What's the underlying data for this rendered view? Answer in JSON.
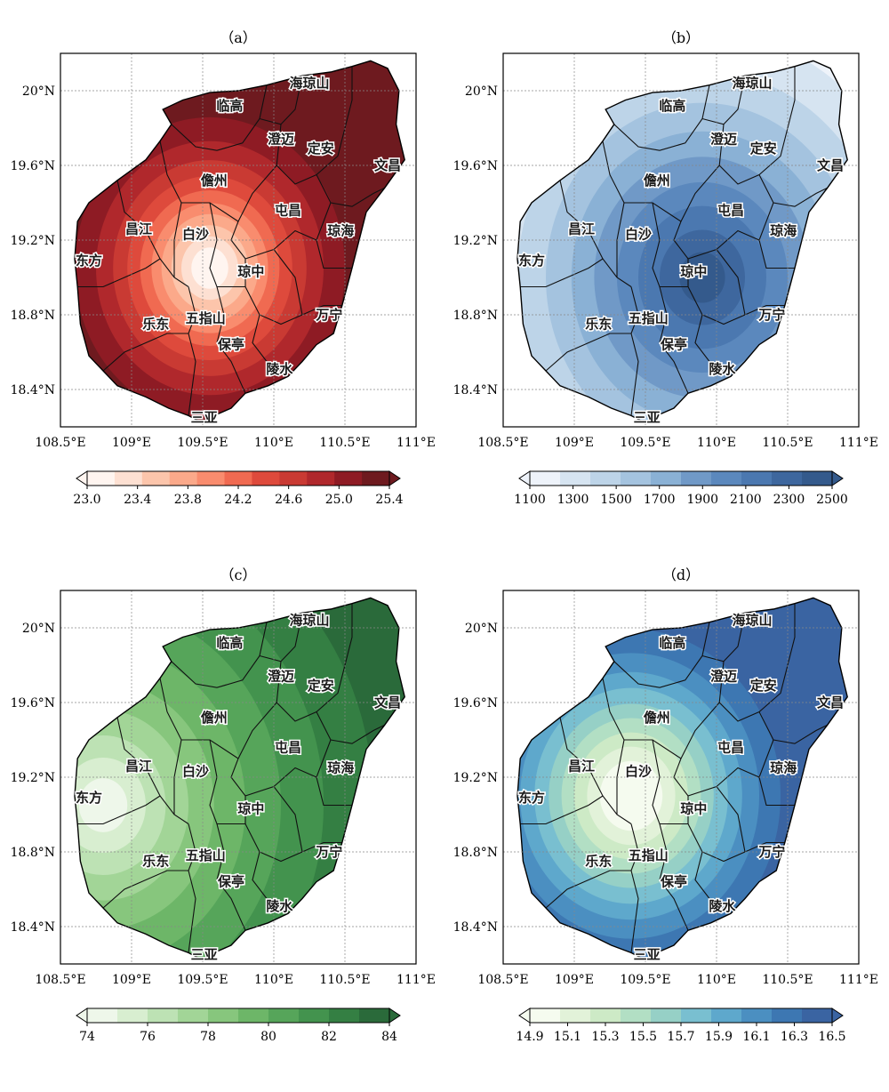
{
  "figure": {
    "panels": [
      {
        "title": "（a）",
        "cmap": [
          "#fff5f0",
          "#fde0d2",
          "#fcc5ab",
          "#fba98a",
          "#f98c6e",
          "#f06a51",
          "#de4a3c",
          "#c93a33",
          "#b0282c",
          "#8e1b24",
          "#6e1a1f"
        ],
        "colorbar_ticks": [
          "23.0",
          "23.4",
          "23.8",
          "24.2",
          "24.6",
          "25.0",
          "25.4"
        ],
        "pattern": "warm-coast"
      },
      {
        "title": "（b）",
        "cmap": [
          "#eef3fa",
          "#d6e4f1",
          "#bdd4e8",
          "#a4c3df",
          "#8ab1d5",
          "#7099c7",
          "#5b88bd",
          "#4b78b0",
          "#3e679e",
          "#345a8c"
        ],
        "colorbar_ticks": [
          "1100",
          "1300",
          "1500",
          "1700",
          "1900",
          "2100",
          "2300",
          "2500"
        ],
        "pattern": "wet-center-east"
      },
      {
        "title": "（c）",
        "cmap": [
          "#eef7ea",
          "#d8eed0",
          "#bde2b4",
          "#a2d597",
          "#87c67d",
          "#6db668",
          "#56a55a",
          "#43934e",
          "#347f43",
          "#2a6a3a"
        ],
        "colorbar_ticks": [
          "74",
          "76",
          "78",
          "80",
          "82",
          "84"
        ],
        "pattern": "humid-except-west"
      },
      {
        "title": "（d）",
        "cmap": [
          "#f5fbef",
          "#e2f2d9",
          "#cdeac6",
          "#b2dfc4",
          "#96d0c6",
          "#79bfd0",
          "#5ea8cc",
          "#4b8fc1",
          "#3d77b2",
          "#3a64a2"
        ],
        "colorbar_ticks": [
          "14.9",
          "15.1",
          "15.3",
          "15.5",
          "15.7",
          "15.9",
          "16.1",
          "16.3",
          "16.5"
        ],
        "pattern": "low-center"
      }
    ],
    "x_ticks": [
      "108.5°E",
      "109°E",
      "109.5°E",
      "110°E",
      "110.5°E",
      "111°E"
    ],
    "y_ticks": [
      "20°N",
      "19.6°N",
      "19.2°N",
      "18.8°N",
      "18.4°N"
    ],
    "cities": [
      {
        "name": "海琼山",
        "lon": 110.25,
        "lat": 20.04
      },
      {
        "name": "临高",
        "lon": 109.69,
        "lat": 19.92
      },
      {
        "name": "澄迈",
        "lon": 110.05,
        "lat": 19.74
      },
      {
        "name": "定安",
        "lon": 110.33,
        "lat": 19.69
      },
      {
        "name": "文昌",
        "lon": 110.8,
        "lat": 19.6
      },
      {
        "name": "儋州",
        "lon": 109.58,
        "lat": 19.52
      },
      {
        "name": "屯昌",
        "lon": 110.1,
        "lat": 19.36
      },
      {
        "name": "琼海",
        "lon": 110.47,
        "lat": 19.25
      },
      {
        "name": "昌江",
        "lon": 109.05,
        "lat": 19.26
      },
      {
        "name": "白沙",
        "lon": 109.45,
        "lat": 19.23
      },
      {
        "name": "东方",
        "lon": 108.7,
        "lat": 19.09
      },
      {
        "name": "琼中",
        "lon": 109.84,
        "lat": 19.03
      },
      {
        "name": "乐东",
        "lon": 109.17,
        "lat": 18.75
      },
      {
        "name": "五指山",
        "lon": 109.52,
        "lat": 18.78
      },
      {
        "name": "万宁",
        "lon": 110.39,
        "lat": 18.8
      },
      {
        "name": "保亭",
        "lon": 109.7,
        "lat": 18.64
      },
      {
        "name": "陵水",
        "lon": 110.04,
        "lat": 18.51
      },
      {
        "name": "三亚",
        "lon": 109.51,
        "lat": 18.25
      }
    ]
  }
}
